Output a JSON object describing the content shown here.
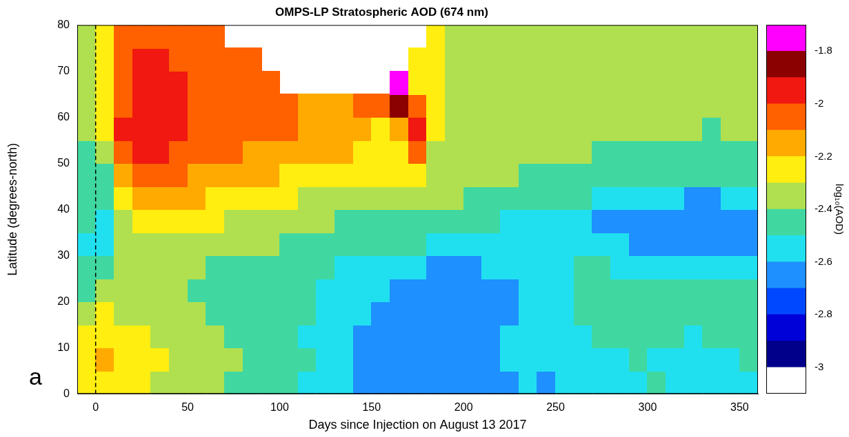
{
  "chart_data": {
    "type": "heatmap",
    "title": "OMPS-LP Stratospheric AOD (674 nm)",
    "x_label": "Days since Injection on August 13 2017",
    "y_label": "Latitude (degrees-north)",
    "panel_label": "a",
    "xlim": [
      -10,
      360
    ],
    "xticks": [
      0,
      50,
      100,
      150,
      200,
      250,
      300,
      350
    ],
    "ylim": [
      0,
      80
    ],
    "yticks": [
      0,
      10,
      20,
      30,
      40,
      50,
      60,
      70,
      80
    ],
    "grid": false,
    "injection_day": 0,
    "x": [
      -5,
      5,
      15,
      25,
      35,
      45,
      55,
      65,
      75,
      85,
      95,
      105,
      115,
      125,
      135,
      145,
      155,
      165,
      175,
      185,
      195,
      205,
      215,
      225,
      235,
      245,
      255,
      265,
      275,
      285,
      295,
      305,
      315,
      325,
      335,
      345,
      355
    ],
    "y": [
      2.5,
      7.5,
      12.5,
      17.5,
      22.5,
      27.5,
      32.5,
      37.5,
      42.5,
      47.5,
      52.5,
      57.5,
      62.5,
      67.5,
      72.5,
      77.5
    ],
    "cells": [
      [
        -2.3,
        -2.25,
        -2.28,
        -2.3,
        -2.32,
        -2.35,
        -2.38,
        -2.4,
        -2.42,
        -2.45,
        -2.45,
        -2.5,
        -2.52,
        -2.55,
        -2.6,
        -2.66,
        -2.68,
        -2.68,
        -2.66,
        -2.65,
        -2.66,
        -2.68,
        -2.66,
        -2.62,
        -2.6,
        -2.62,
        -2.6,
        -2.58,
        -2.56,
        -2.55,
        -2.52,
        -2.5,
        -2.55,
        -2.6,
        -2.58,
        -2.56,
        -2.55
      ],
      [
        -2.22,
        -2.15,
        -2.22,
        -2.28,
        -2.3,
        -2.33,
        -2.36,
        -2.38,
        -2.4,
        -2.42,
        -2.45,
        -2.48,
        -2.5,
        -2.55,
        -2.58,
        -2.64,
        -2.66,
        -2.67,
        -2.66,
        -2.66,
        -2.67,
        -2.66,
        -2.64,
        -2.6,
        -2.58,
        -2.58,
        -2.56,
        -2.55,
        -2.55,
        -2.52,
        -2.5,
        -2.52,
        -2.56,
        -2.58,
        -2.55,
        -2.52,
        -2.5
      ],
      [
        -2.3,
        -2.22,
        -2.28,
        -2.3,
        -2.33,
        -2.35,
        -2.38,
        -2.4,
        -2.43,
        -2.45,
        -2.47,
        -2.5,
        -2.52,
        -2.55,
        -2.58,
        -2.62,
        -2.65,
        -2.67,
        -2.68,
        -2.67,
        -2.68,
        -2.66,
        -2.64,
        -2.6,
        -2.57,
        -2.55,
        -2.53,
        -2.52,
        -2.5,
        -2.48,
        -2.47,
        -2.48,
        -2.5,
        -2.52,
        -2.5,
        -2.48,
        -2.48
      ],
      [
        -2.38,
        -2.3,
        -2.32,
        -2.34,
        -2.36,
        -2.38,
        -2.4,
        -2.42,
        -2.43,
        -2.45,
        -2.46,
        -2.48,
        -2.5,
        -2.53,
        -2.56,
        -2.6,
        -2.63,
        -2.65,
        -2.67,
        -2.68,
        -2.68,
        -2.67,
        -2.66,
        -2.62,
        -2.58,
        -2.55,
        -2.52,
        -2.5,
        -2.48,
        -2.46,
        -2.45,
        -2.46,
        -2.47,
        -2.5,
        -2.48,
        -2.47,
        -2.47
      ],
      [
        -2.45,
        -2.38,
        -2.36,
        -2.37,
        -2.38,
        -2.4,
        -2.42,
        -2.43,
        -2.44,
        -2.45,
        -2.46,
        -2.48,
        -2.5,
        -2.53,
        -2.55,
        -2.58,
        -2.6,
        -2.62,
        -2.64,
        -2.66,
        -2.66,
        -2.66,
        -2.65,
        -2.63,
        -2.6,
        -2.56,
        -2.53,
        -2.5,
        -2.48,
        -2.46,
        -2.45,
        -2.45,
        -2.46,
        -2.47,
        -2.46,
        -2.45,
        -2.45
      ],
      [
        -2.5,
        -2.45,
        -2.4,
        -2.38,
        -2.38,
        -2.39,
        -2.4,
        -2.41,
        -2.42,
        -2.43,
        -2.44,
        -2.46,
        -2.48,
        -2.5,
        -2.52,
        -2.54,
        -2.56,
        -2.58,
        -2.6,
        -2.62,
        -2.62,
        -2.62,
        -2.6,
        -2.58,
        -2.56,
        -2.54,
        -2.52,
        -2.5,
        -2.5,
        -2.52,
        -2.55,
        -2.56,
        -2.55,
        -2.55,
        -2.54,
        -2.55,
        -2.55
      ],
      [
        -2.55,
        -2.52,
        -2.4,
        -2.35,
        -2.33,
        -2.34,
        -2.36,
        -2.37,
        -2.38,
        -2.39,
        -2.4,
        -2.42,
        -2.43,
        -2.44,
        -2.46,
        -2.47,
        -2.48,
        -2.5,
        -2.5,
        -2.52,
        -2.53,
        -2.54,
        -2.54,
        -2.53,
        -2.52,
        -2.53,
        -2.54,
        -2.56,
        -2.58,
        -2.6,
        -2.62,
        -2.64,
        -2.65,
        -2.66,
        -2.64,
        -2.62,
        -2.62
      ],
      [
        -2.5,
        -2.55,
        -2.35,
        -2.28,
        -2.24,
        -2.25,
        -2.28,
        -2.3,
        -2.32,
        -2.34,
        -2.35,
        -2.36,
        -2.38,
        -2.4,
        -2.42,
        -2.43,
        -2.44,
        -2.45,
        -2.45,
        -2.46,
        -2.47,
        -2.48,
        -2.5,
        -2.52,
        -2.53,
        -2.55,
        -2.57,
        -2.6,
        -2.62,
        -2.64,
        -2.66,
        -2.65,
        -2.64,
        -2.66,
        -2.67,
        -2.66,
        -2.65
      ],
      [
        -2.48,
        -2.5,
        -2.25,
        -2.15,
        -2.12,
        -2.15,
        -2.18,
        -2.2,
        -2.24,
        -2.26,
        -2.28,
        -2.3,
        -2.32,
        -2.34,
        -2.35,
        -2.36,
        -2.37,
        -2.38,
        -2.38,
        -2.39,
        -2.4,
        -2.42,
        -2.43,
        -2.44,
        -2.45,
        -2.46,
        -2.48,
        -2.5,
        -2.52,
        -2.54,
        -2.56,
        -2.58,
        -2.6,
        -2.62,
        -2.62,
        -2.6,
        -2.6
      ],
      [
        -2.45,
        -2.42,
        -2.12,
        -2.05,
        -2.05,
        -2.08,
        -2.12,
        -2.14,
        -2.16,
        -2.18,
        -2.18,
        -2.2,
        -2.22,
        -2.22,
        -2.24,
        -2.25,
        -2.24,
        -2.3,
        -2.2,
        -2.35,
        -2.37,
        -2.38,
        -2.39,
        -2.4,
        -2.42,
        -2.43,
        -2.44,
        -2.45,
        -2.46,
        -2.47,
        -2.48,
        -2.48,
        -2.48,
        -2.5,
        -2.5,
        -2.48,
        -2.48
      ],
      [
        -2.42,
        -2.35,
        -2.05,
        -1.97,
        -1.98,
        -2.02,
        -2.05,
        -2.08,
        -2.1,
        -2.12,
        -2.13,
        -2.15,
        -2.16,
        -2.17,
        -2.18,
        -2.2,
        -2.22,
        -2.25,
        -2.05,
        -2.32,
        -2.34,
        -2.36,
        -2.37,
        -2.38,
        -2.38,
        -2.39,
        -2.4,
        -2.4,
        -2.41,
        -2.42,
        -2.42,
        -2.43,
        -2.43,
        -2.44,
        -2.44,
        -2.43,
        -2.43
      ],
      [
        -2.4,
        -2.3,
        -2.0,
        -1.95,
        -1.96,
        -2.0,
        -2.02,
        -2.05,
        -2.06,
        -2.08,
        -2.1,
        -2.1,
        -2.12,
        -2.13,
        -2.15,
        -2.18,
        -2.2,
        -2.15,
        -1.98,
        -2.3,
        -2.33,
        -2.35,
        -2.36,
        -2.36,
        -2.37,
        -2.37,
        -2.38,
        -2.38,
        -2.38,
        -2.39,
        -2.39,
        -2.4,
        -2.4,
        -2.4,
        -2.41,
        -2.4,
        -2.4
      ],
      [
        -2.38,
        -2.3,
        -2.02,
        -1.97,
        -1.97,
        -2.0,
        -2.02,
        -2.04,
        -2.05,
        -2.06,
        -2.08,
        -2.1,
        -2.12,
        -2.14,
        -2.15,
        -2.1,
        -2.05,
        -1.9,
        -2.05,
        -2.3,
        -2.34,
        -2.35,
        -2.35,
        -2.36,
        -2.36,
        -2.36,
        -2.37,
        -2.37,
        -2.37,
        -2.38,
        -2.38,
        -2.38,
        -2.38,
        -2.39,
        -2.39,
        -2.38,
        -2.38
      ],
      [
        -2.36,
        -2.3,
        -2.05,
        -1.98,
        -1.98,
        -2.0,
        -2.02,
        -2.03,
        -2.05,
        -2.07,
        -2.1,
        null,
        null,
        null,
        null,
        null,
        null,
        -1.78,
        -2.2,
        -2.3,
        -2.34,
        -2.35,
        -2.35,
        -2.36,
        -2.36,
        -2.36,
        -2.36,
        -2.37,
        -2.37,
        -2.37,
        -2.37,
        -2.38,
        -2.38,
        -2.38,
        -2.38,
        -2.38,
        -2.38
      ],
      [
        -2.35,
        -2.3,
        -2.08,
        -2.0,
        -2.0,
        -2.02,
        -2.04,
        -2.06,
        -2.08,
        -2.1,
        null,
        null,
        null,
        null,
        null,
        null,
        null,
        null,
        -2.22,
        -2.3,
        -2.34,
        -2.35,
        -2.35,
        -2.36,
        -2.36,
        -2.36,
        -2.36,
        -2.37,
        -2.37,
        -2.37,
        -2.37,
        -2.38,
        -2.38,
        -2.38,
        -2.38,
        -2.38,
        -2.38
      ],
      [
        -2.35,
        -2.3,
        -2.1,
        -2.02,
        -2.03,
        -2.05,
        -2.07,
        -2.08,
        null,
        null,
        null,
        null,
        null,
        null,
        null,
        null,
        null,
        null,
        null,
        -2.3,
        -2.34,
        -2.36,
        -2.36,
        -2.36,
        -2.36,
        -2.36,
        -2.37,
        -2.37,
        -2.37,
        -2.37,
        -2.38,
        -2.38,
        -2.38,
        -2.38,
        -2.38,
        -2.38,
        -2.38
      ]
    ],
    "colorbar": {
      "label": "log₁₀(AOD)",
      "lim": [
        -3.1,
        -1.7
      ],
      "ticks": [
        -3,
        -2.8,
        -2.6,
        -2.4,
        -2.2,
        -2,
        -1.8
      ],
      "colors": [
        "#ffffff",
        "#00008b",
        "#0000d8",
        "#0048ff",
        "#1e90ff",
        "#20e0f0",
        "#40d8a0",
        "#b0e050",
        "#ffee10",
        "#ffaa00",
        "#ff6000",
        "#f01810",
        "#8b0000",
        "#ff00ff"
      ]
    }
  }
}
